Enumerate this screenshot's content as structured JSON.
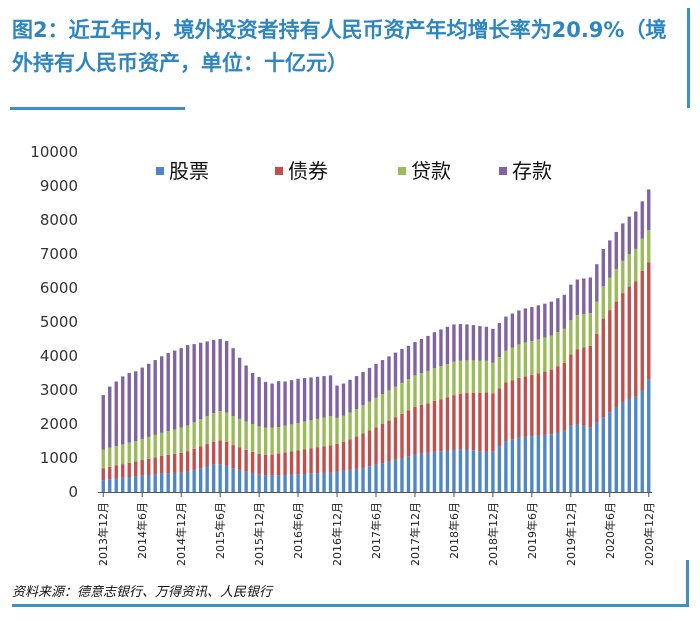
{
  "title": "图2：近五年内，境外投资者持有人民币资产年均增长率为20.9%（境外持有人民币资产，单位：十亿元）",
  "source": "资料来源：德意志银行、万得资讯、人民银行",
  "colors": {
    "accent": "#3d8fc6",
    "stocks": "#4f86c6",
    "bonds": "#c0504d",
    "loans": "#9bbb59",
    "deposits": "#8064a2"
  },
  "chart_data": {
    "type": "bar",
    "stacked": true,
    "ylim": [
      0,
      10000
    ],
    "yticks": [
      0,
      1000,
      2000,
      3000,
      4000,
      5000,
      6000,
      7000,
      8000,
      9000,
      10000
    ],
    "legend_position": "top",
    "grid": false,
    "tick_labels": [
      "2013年12月",
      "2014年6月",
      "2014年12月",
      "2015年6月",
      "2015年12月",
      "2016年6月",
      "2016年12月",
      "2017年6月",
      "2017年12月",
      "2018年6月",
      "2018年12月",
      "2019年6月",
      "2019年12月",
      "2020年6月",
      "2020年12月"
    ],
    "tick_label_index": [
      0,
      6,
      12,
      18,
      24,
      30,
      36,
      42,
      48,
      54,
      60,
      66,
      72,
      78,
      84
    ],
    "categories": [
      "2013-12",
      "2014-01",
      "2014-02",
      "2014-03",
      "2014-04",
      "2014-05",
      "2014-06",
      "2014-07",
      "2014-08",
      "2014-09",
      "2014-10",
      "2014-11",
      "2014-12",
      "2015-01",
      "2015-02",
      "2015-03",
      "2015-04",
      "2015-05",
      "2015-06",
      "2015-07",
      "2015-08",
      "2015-09",
      "2015-10",
      "2015-11",
      "2015-12",
      "2016-01",
      "2016-02",
      "2016-03",
      "2016-04",
      "2016-05",
      "2016-06",
      "2016-07",
      "2016-08",
      "2016-09",
      "2016-10",
      "2016-11",
      "2016-12",
      "2017-01",
      "2017-02",
      "2017-03",
      "2017-04",
      "2017-05",
      "2017-06",
      "2017-07",
      "2017-08",
      "2017-09",
      "2017-10",
      "2017-11",
      "2017-12",
      "2018-01",
      "2018-02",
      "2018-03",
      "2018-04",
      "2018-05",
      "2018-06",
      "2018-07",
      "2018-08",
      "2018-09",
      "2018-10",
      "2018-11",
      "2018-12",
      "2019-01",
      "2019-02",
      "2019-03",
      "2019-04",
      "2019-05",
      "2019-06",
      "2019-07",
      "2019-08",
      "2019-09",
      "2019-10",
      "2019-11",
      "2019-12",
      "2020-01",
      "2020-02",
      "2020-03",
      "2020-04",
      "2020-05",
      "2020-06",
      "2020-07",
      "2020-08",
      "2020-09",
      "2020-10",
      "2020-11",
      "2020-12"
    ],
    "series": [
      {
        "name": "股票",
        "values": [
          350,
          380,
          400,
          420,
          440,
          460,
          480,
          500,
          520,
          540,
          550,
          560,
          570,
          600,
          650,
          700,
          750,
          800,
          820,
          780,
          700,
          650,
          600,
          560,
          520,
          490,
          480,
          490,
          500,
          510,
          520,
          530,
          540,
          550,
          560,
          570,
          600,
          620,
          650,
          680,
          720,
          760,
          800,
          850,
          900,
          950,
          1000,
          1050,
          1100,
          1130,
          1150,
          1180,
          1200,
          1220,
          1250,
          1260,
          1250,
          1230,
          1200,
          1180,
          1200,
          1350,
          1500,
          1550,
          1600,
          1620,
          1640,
          1660,
          1680,
          1700,
          1750,
          1800,
          1950,
          2000,
          1950,
          1900,
          2050,
          2200,
          2350,
          2500,
          2650,
          2750,
          2800,
          3000,
          3300
        ]
      },
      {
        "name": "债券",
        "values": [
          350,
          360,
          380,
          400,
          420,
          440,
          460,
          480,
          500,
          520,
          540,
          560,
          580,
          600,
          620,
          640,
          660,
          680,
          700,
          700,
          680,
          660,
          640,
          620,
          600,
          600,
          620,
          640,
          660,
          680,
          700,
          720,
          740,
          760,
          780,
          800,
          820,
          850,
          900,
          950,
          1000,
          1050,
          1100,
          1150,
          1200,
          1250,
          1300,
          1350,
          1400,
          1430,
          1460,
          1500,
          1530,
          1560,
          1600,
          1630,
          1660,
          1690,
          1720,
          1750,
          1700,
          1700,
          1720,
          1740,
          1760,
          1780,
          1800,
          1830,
          1860,
          1900,
          1950,
          2000,
          2100,
          2200,
          2300,
          2400,
          2600,
          2900,
          3000,
          3100,
          3200,
          3300,
          3400,
          3500,
          3450
        ]
      },
      {
        "name": "贷款",
        "values": [
          550,
          560,
          570,
          580,
          590,
          600,
          620,
          640,
          660,
          680,
          700,
          720,
          740,
          760,
          780,
          800,
          820,
          840,
          860,
          860,
          850,
          840,
          830,
          820,
          810,
          800,
          790,
          780,
          790,
          800,
          810,
          820,
          830,
          840,
          850,
          860,
          760,
          770,
          790,
          810,
          830,
          850,
          870,
          880,
          890,
          900,
          910,
          920,
          930,
          940,
          950,
          960,
          970,
          980,
          980,
          970,
          960,
          950,
          940,
          930,
          900,
          920,
          940,
          960,
          980,
          1000,
          1000,
          1000,
          1000,
          1000,
          1000,
          1000,
          1000,
          1000,
          980,
          960,
          950,
          950,
          950,
          950,
          950,
          950,
          950,
          950,
          950
        ]
      },
      {
        "name": "存款",
        "values": [
          1600,
          1800,
          1900,
          2000,
          2050,
          2050,
          2100,
          2150,
          2200,
          2250,
          2300,
          2320,
          2340,
          2360,
          2300,
          2250,
          2200,
          2150,
          2120,
          2100,
          2000,
          1800,
          1650,
          1500,
          1450,
          1350,
          1300,
          1350,
          1300,
          1300,
          1300,
          1280,
          1260,
          1240,
          1220,
          1200,
          950,
          950,
          960,
          970,
          980,
          990,
          1000,
          1000,
          1000,
          1000,
          1000,
          980,
          980,
          1000,
          1030,
          1060,
          1080,
          1100,
          1100,
          1080,
          1060,
          1040,
          1020,
          1000,
          1000,
          1000,
          1000,
          1000,
          1000,
          1000,
          1000,
          1000,
          1000,
          1000,
          1000,
          1000,
          1050,
          1050,
          1050,
          1050,
          1100,
          1100,
          1100,
          1100,
          1100,
          1100,
          1100,
          1100,
          1200
        ]
      }
    ]
  }
}
